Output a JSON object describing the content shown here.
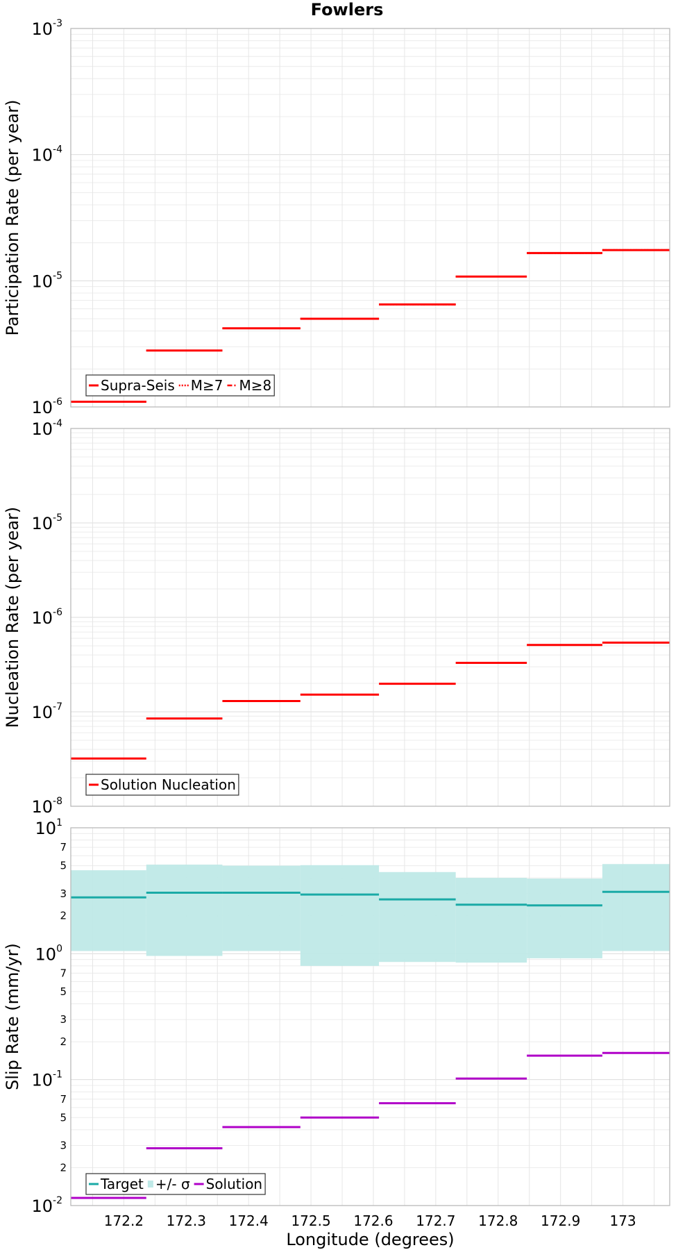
{
  "figure": {
    "title": "Fowlers"
  },
  "chart_data": [
    {
      "type": "line",
      "step": true,
      "title": "Fowlers",
      "ylabel": "Participation Rate (per year)",
      "xlabel": "",
      "yscale": "log",
      "ylim": [
        1e-06,
        0.001
      ],
      "xlim": [
        172.115,
        173.075
      ],
      "grid": true,
      "legend_position": "bottom-left",
      "bins": [
        [
          172.115,
          172.236
        ],
        [
          172.236,
          172.358
        ],
        [
          172.358,
          172.483
        ],
        [
          172.483,
          172.609
        ],
        [
          172.609,
          172.732
        ],
        [
          172.732,
          172.846
        ],
        [
          172.846,
          172.967
        ],
        [
          172.967,
          173.075
        ]
      ],
      "series": [
        {
          "name": "Supra-Seis",
          "style": "solid",
          "color": "#ff0000",
          "values": [
            1.1e-06,
            2.8e-06,
            4.2e-06,
            5e-06,
            6.5e-06,
            1.08e-05,
            1.66e-05,
            1.75e-05
          ]
        },
        {
          "name": "M≥7",
          "style": "dotted",
          "color": "#ff0000",
          "values": [
            1.1e-06,
            2.8e-06,
            4.2e-06,
            5e-06,
            6.5e-06,
            1.08e-05,
            1.66e-05,
            1.75e-05
          ]
        },
        {
          "name": "M≥8",
          "style": "dashdot",
          "color": "#ff0000",
          "values": [
            1.1e-06,
            2.8e-06,
            4.2e-06,
            5e-06,
            6.5e-06,
            1.08e-05,
            1.66e-05,
            1.75e-05
          ]
        }
      ]
    },
    {
      "type": "line",
      "step": true,
      "ylabel": "Nucleation Rate (per year)",
      "xlabel": "",
      "yscale": "log",
      "ylim": [
        1e-08,
        0.0001
      ],
      "xlim": [
        172.115,
        173.075
      ],
      "grid": true,
      "legend_position": "bottom-left",
      "bins": [
        [
          172.115,
          172.236
        ],
        [
          172.236,
          172.358
        ],
        [
          172.358,
          172.483
        ],
        [
          172.483,
          172.609
        ],
        [
          172.609,
          172.732
        ],
        [
          172.732,
          172.846
        ],
        [
          172.846,
          172.967
        ],
        [
          172.967,
          173.075
        ]
      ],
      "series": [
        {
          "name": "Solution Nucleation",
          "style": "solid",
          "color": "#ff0000",
          "values": [
            3.2e-08,
            8.5e-08,
            1.3e-07,
            1.52e-07,
            1.98e-07,
            3.3e-07,
            5.1e-07,
            5.4e-07
          ]
        }
      ]
    },
    {
      "type": "line",
      "step": true,
      "ylabel": "Slip Rate (mm/yr)",
      "xlabel": "Longitude (degrees)",
      "yscale": "log",
      "ylim": [
        0.01,
        10
      ],
      "xlim": [
        172.115,
        173.075
      ],
      "grid": true,
      "legend_position": "bottom-left",
      "x_ticks": [
        "172.2",
        "172.3",
        "172.4",
        "172.5",
        "172.6",
        "172.7",
        "172.8",
        "172.9",
        "173"
      ],
      "bins": [
        [
          172.115,
          172.236
        ],
        [
          172.236,
          172.358
        ],
        [
          172.358,
          172.483
        ],
        [
          172.483,
          172.609
        ],
        [
          172.609,
          172.732
        ],
        [
          172.732,
          172.846
        ],
        [
          172.846,
          172.967
        ],
        [
          172.967,
          173.075
        ]
      ],
      "band": {
        "name": "+/- σ",
        "color": "#bfe9e7",
        "lower": [
          1.05,
          0.96,
          1.05,
          0.8,
          0.86,
          0.85,
          0.92,
          1.05
        ],
        "upper": [
          4.6,
          5.1,
          5.0,
          5.05,
          4.45,
          4.0,
          3.95,
          5.15
        ]
      },
      "series": [
        {
          "name": "Target",
          "style": "solid",
          "color": "#1aaaa6",
          "values": [
            2.8,
            3.05,
            3.05,
            2.95,
            2.7,
            2.45,
            2.42,
            3.1
          ]
        },
        {
          "name": "Solution",
          "style": "solid",
          "color": "#b000c8",
          "values": [
            0.0115,
            0.0285,
            0.042,
            0.05,
            0.065,
            0.102,
            0.155,
            0.163
          ]
        }
      ]
    }
  ]
}
